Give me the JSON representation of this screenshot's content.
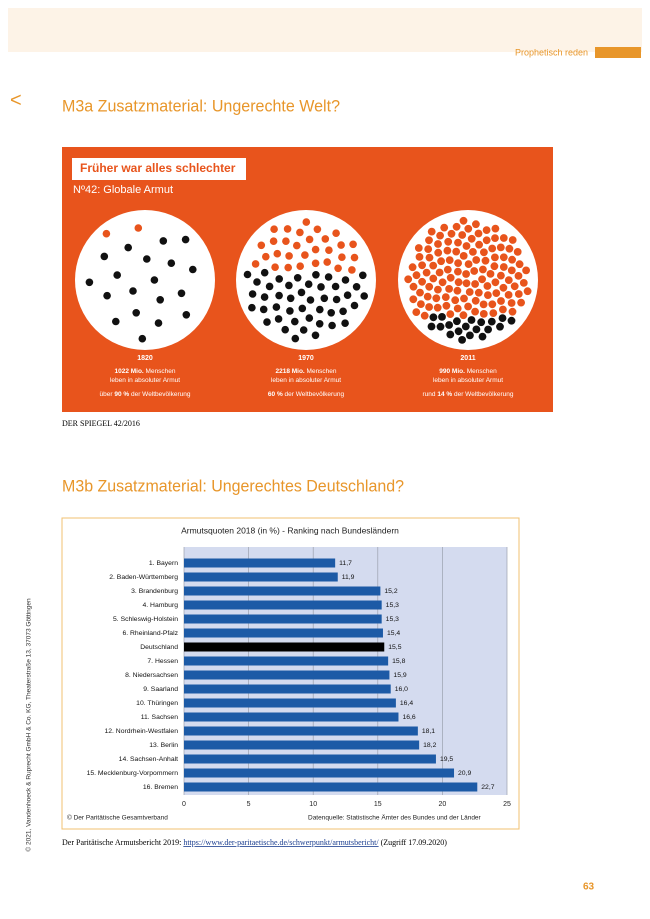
{
  "header": {
    "running_title": "Prophetisch reden",
    "back": "<"
  },
  "section_a": {
    "heading": "M3a Zusatzmaterial: Ungerechte Welt?",
    "infographic": {
      "banner": "Früher war alles schlechter",
      "subtitle": "Nº42: Globale Armut",
      "panels": [
        {
          "year": "1820",
          "dots_poor": 19,
          "dots_other": 2,
          "lines": [
            [
              {
                "text": "1022 Mio.",
                "bold": true
              },
              {
                "text": " Menschen"
              }
            ],
            [
              {
                "text": "leben in absoluter Armut"
              }
            ],
            [
              {
                "text": "über "
              },
              {
                "text": "90 %",
                "bold": true
              },
              {
                "text": " der Weltbevölkerung"
              }
            ]
          ]
        },
        {
          "year": "1970",
          "dots_poor": 45,
          "dots_other": 30,
          "lines": [
            [
              {
                "text": "2218 Mio.",
                "bold": true
              },
              {
                "text": " Menschen"
              }
            ],
            [
              {
                "text": "leben in absoluter Armut"
              }
            ],
            [
              {
                "text": "60 %",
                "bold": true
              },
              {
                "text": " der Weltbevölkerung"
              }
            ]
          ]
        },
        {
          "year": "2011",
          "dots_poor": 20,
          "dots_other": 120,
          "lines": [
            [
              {
                "text": "990 Mio.",
                "bold": true
              },
              {
                "text": " Menschen"
              }
            ],
            [
              {
                "text": "leben in absoluter Armut"
              }
            ],
            [
              {
                "text": "rund "
              },
              {
                "text": "14 %",
                "bold": true
              },
              {
                "text": " der Weltbevölkerung"
              }
            ]
          ]
        }
      ]
    },
    "source": "DER SPIEGEL 42/2016"
  },
  "section_b": {
    "heading": "M3b Zusatzmaterial: Ungerechtes Deutschland?",
    "source_prefix": "Der Paritätische Armutsbericht 2019: ",
    "source_link": "https://www.der-paritaetische.de/schwerpunkt/armutsbericht/",
    "source_suffix": " (Zugriff 17.09.2020)"
  },
  "chart_data": {
    "type": "bar",
    "orientation": "horizontal",
    "title": "Armutsquoten 2018 (in %) - Ranking nach Bundesländern",
    "categories": [
      "1. Bayern",
      "2. Baden-Württemberg",
      "3. Brandenburg",
      "4. Hamburg",
      "5. Schleswig-Holstein",
      "6. Rheinland-Pfalz",
      "Deutschland",
      "7. Hessen",
      "8. Niedersachsen",
      "9. Saarland",
      "10. Thüringen",
      "11. Sachsen",
      "12. Nordrhein-Westfalen",
      "13. Berlin",
      "14. Sachsen-Anhalt",
      "15. Mecklenburg-Vorpommern",
      "16. Bremen"
    ],
    "values": [
      11.7,
      11.9,
      15.2,
      15.3,
      15.3,
      15.4,
      15.5,
      15.8,
      15.9,
      16.0,
      16.4,
      16.6,
      18.1,
      18.2,
      19.5,
      20.9,
      22.7
    ],
    "value_labels": [
      "11,7",
      "11,9",
      "15,2",
      "15,3",
      "15,3",
      "15,4",
      "15,5",
      "15,8",
      "15,9",
      "16,0",
      "16,4",
      "16,6",
      "18,1",
      "18,2",
      "19,5",
      "20,9",
      "22,7"
    ],
    "colors": [
      "#1c5aa6",
      "#1c5aa6",
      "#1c5aa6",
      "#1c5aa6",
      "#1c5aa6",
      "#1c5aa6",
      "#000000",
      "#1c5aa6",
      "#1c5aa6",
      "#1c5aa6",
      "#1c5aa6",
      "#1c5aa6",
      "#1c5aa6",
      "#1c5aa6",
      "#1c5aa6",
      "#1c5aa6",
      "#1c5aa6"
    ],
    "xlim": [
      0,
      25
    ],
    "xticks": [
      0,
      5,
      10,
      15,
      20,
      25
    ],
    "grid": true,
    "credit": "© Der Paritätische Gesamtverband",
    "data_source": "Datenquelle: Statistische Ämter des Bundes und der Länder"
  },
  "sidebar": "© 2021, Vandenhoeck & Ruprecht GmbH & Co. KG, Theaterstraße 13, 37073 Göttingen",
  "page_number": "63"
}
